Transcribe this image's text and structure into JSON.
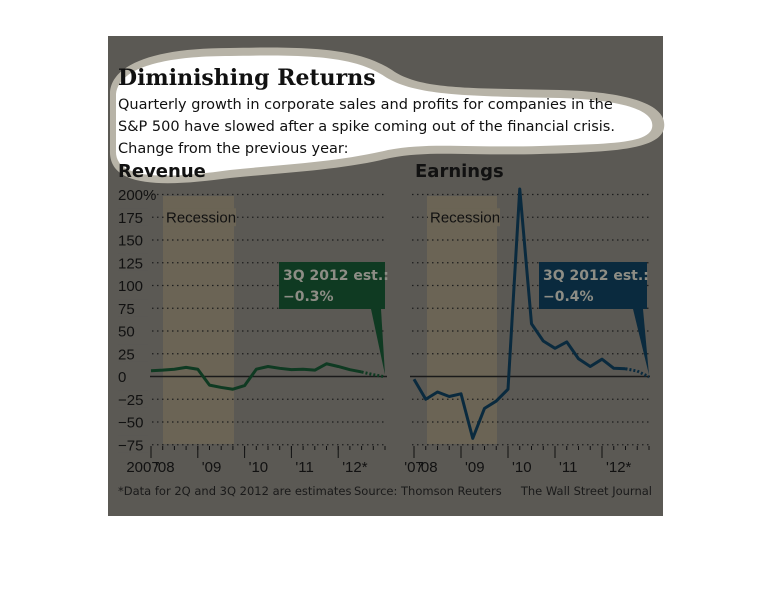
{
  "title": "Diminishing Returns",
  "subtitle_lines": [
    "Quarterly growth in corporate sales and profits for companies in the",
    "S&P 500 have slowed after a spike coming out of the financial crisis.",
    "Change from the previous year:"
  ],
  "footnote": "*Data for 2Q and 3Q 2012 are estimates",
  "source": "Source: Thomson Reuters",
  "credit": "The Wall Street Journal",
  "colors": {
    "panel": "#5b5954",
    "recession": "#6b6455",
    "revenue": "#0f3a22",
    "earnings": "#0a2a3e",
    "callout_text": "#8d8d85"
  },
  "chart_data": [
    {
      "type": "line",
      "title": "Revenue",
      "ylim": [
        -75,
        200
      ],
      "y_ticks": [
        "200%",
        "175",
        "150",
        "125",
        "100",
        "75",
        "50",
        "25",
        "0",
        "-25",
        "-50",
        "-75"
      ],
      "x_tick_labels": [
        "2007",
        "'08",
        "'09",
        "'10",
        "'11",
        "'12*"
      ],
      "grid": true,
      "recession_label": "Recession",
      "recession": [
        "4Q 2007",
        "2Q 2009"
      ],
      "x": [
        "3Q07",
        "4Q07",
        "1Q08",
        "2Q08",
        "3Q08",
        "4Q08",
        "1Q09",
        "2Q09",
        "3Q09",
        "4Q09",
        "1Q10",
        "2Q10",
        "3Q10",
        "4Q10",
        "1Q11",
        "2Q11",
        "3Q11",
        "4Q11",
        "1Q12",
        "2Q12",
        "3Q12"
      ],
      "values": [
        6.3,
        7,
        8,
        10,
        8,
        -9.5,
        -12,
        -14,
        -10,
        8,
        11,
        9,
        7.5,
        8,
        7,
        14,
        11,
        7.5,
        5,
        2,
        -0.3
      ],
      "estimated_from_index": 19,
      "callout": {
        "line1": "3Q 2012 est.:",
        "line2": "−0.3%"
      }
    },
    {
      "type": "line",
      "title": "Earnings",
      "ylim": [
        -75,
        200
      ],
      "x_tick_labels": [
        "'07",
        "'08",
        "'09",
        "'10",
        "'11",
        "'12*"
      ],
      "grid": true,
      "recession_label": "Recession",
      "recession": [
        "4Q 2007",
        "2Q 2009"
      ],
      "x": [
        "3Q07",
        "4Q07",
        "1Q08",
        "2Q08",
        "3Q08",
        "4Q08",
        "1Q09",
        "2Q09",
        "3Q09",
        "4Q09",
        "1Q10",
        "2Q10",
        "3Q10",
        "4Q10",
        "1Q11",
        "2Q11",
        "3Q11",
        "4Q11",
        "1Q12",
        "2Q12",
        "3Q12"
      ],
      "values": [
        -3,
        -25,
        -17,
        -22,
        -19,
        -68,
        -35,
        -27,
        -14,
        206,
        58,
        39,
        31,
        38,
        19.5,
        11,
        19,
        9,
        8.5,
        6,
        -0.4
      ],
      "estimated_from_index": 19,
      "callout": {
        "line1": "3Q 2012 est.:",
        "line2": "−0.4%"
      }
    }
  ]
}
